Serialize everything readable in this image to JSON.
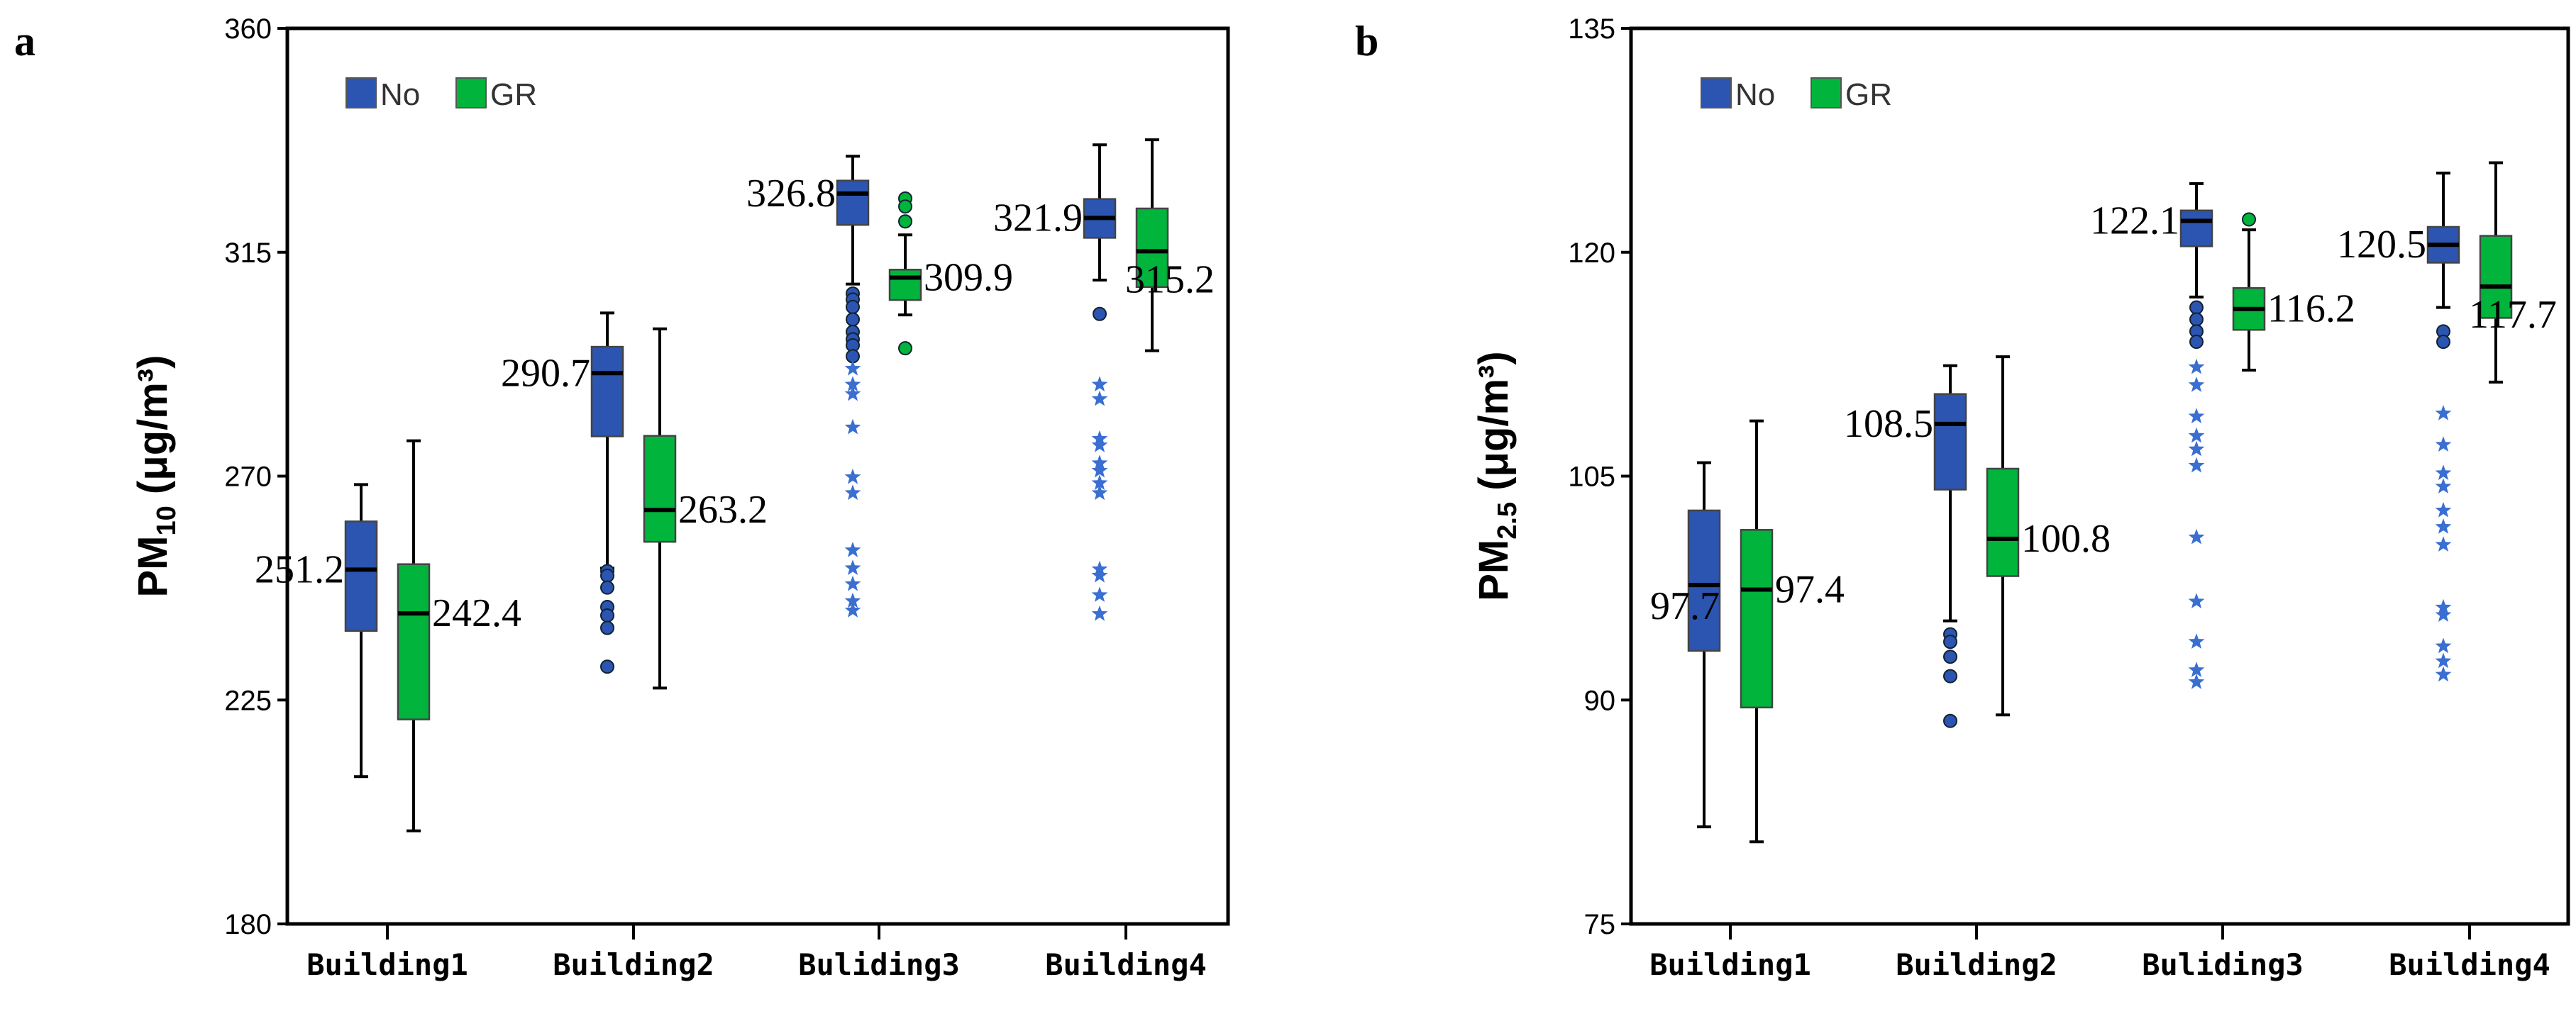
{
  "colors": {
    "No": "#2b55b0",
    "GR": "#00b43c",
    "star": "#3a6fd1"
  },
  "chart_data": [
    {
      "type": "box",
      "panel_label": "a",
      "ylabel_main": "PM",
      "ylabel_sub": "10",
      "ylabel_unit": " (μg/m³)",
      "ylim": [
        180,
        360
      ],
      "yticks": [
        180,
        225,
        270,
        315,
        360
      ],
      "categories": [
        "Building1",
        "Building2",
        "Buliding3",
        "Building4"
      ],
      "legend": {
        "position": "top-left",
        "entries": [
          "No",
          "GR"
        ]
      },
      "series": [
        {
          "name": "No",
          "boxes": [
            {
              "whisker_low": 209.6,
              "q1": 238.9,
              "median": 251.2,
              "q3": 260.9,
              "whisker_high": 268.3,
              "median_label": "251.2",
              "label_side": "left",
              "outliers": [],
              "extremes": []
            },
            {
              "whisker_low": 251.5,
              "q1": 278.0,
              "median": 290.7,
              "q3": 296.0,
              "whisker_high": 302.8,
              "median_label": "290.7",
              "label_side": "left",
              "outliers": [
                250.9,
                250.0,
                247.6,
                243.7,
                242.0,
                239.5,
                231.7
              ],
              "extremes": []
            },
            {
              "whisker_low": 308.6,
              "q1": 320.5,
              "median": 326.8,
              "q3": 329.4,
              "whisker_high": 334.3,
              "median_label": "326.8",
              "label_side": "left",
              "outliers": [
                306.7,
                305.5,
                304.0,
                301.5,
                299.0,
                297.5,
                296.3,
                294.1
              ],
              "extremes": [
                291.6,
                288.4,
                286.5,
                279.8,
                269.8,
                266.6,
                255.1,
                251.5,
                248.3,
                244.9,
                243.0
              ]
            },
            {
              "whisker_low": 309.4,
              "q1": 317.9,
              "median": 321.9,
              "q3": 325.7,
              "whisker_high": 336.6,
              "median_label": "321.9",
              "label_side": "left",
              "outliers": [
                302.6
              ],
              "extremes": [
                288.4,
                285.5,
                277.5,
                276.2,
                272.6,
                271.1,
                268.6,
                266.6,
                251.3,
                250.0,
                246.1,
                242.3
              ]
            }
          ]
        },
        {
          "name": "GR",
          "boxes": [
            {
              "whisker_low": 198.7,
              "q1": 221.1,
              "median": 242.4,
              "q3": 252.3,
              "whisker_high": 277.1,
              "median_label": "242.4",
              "label_side": "right",
              "outliers": [],
              "extremes": []
            },
            {
              "whisker_low": 227.4,
              "q1": 256.8,
              "median": 263.2,
              "q3": 278.1,
              "whisker_high": 299.6,
              "median_label": "263.2",
              "label_side": "right",
              "outliers": [],
              "extremes": []
            },
            {
              "whisker_low": 302.4,
              "q1": 305.4,
              "median": 309.9,
              "q3": 311.5,
              "whisker_high": 318.5,
              "median_label": "309.9",
              "label_side": "right",
              "outliers": [
                325.8,
                324.2,
                321.2,
                295.7
              ],
              "extremes": []
            },
            {
              "whisker_low": 295.2,
              "q1": 308.0,
              "median": 315.2,
              "q3": 323.8,
              "whisker_high": 337.6,
              "median_label": "315.2",
              "label_side": "overlap",
              "outliers": [],
              "extremes": []
            }
          ]
        }
      ]
    },
    {
      "type": "box",
      "panel_label": "b",
      "ylabel_main": "PM",
      "ylabel_sub": "2.5",
      "ylabel_unit": " (μg/m³)",
      "ylim": [
        75,
        135
      ],
      "yticks": [
        75,
        90,
        105,
        120,
        135
      ],
      "categories": [
        "Building1",
        "Building2",
        "Buliding3",
        "Building4"
      ],
      "legend": {
        "position": "top-left",
        "entries": [
          "No",
          "GR"
        ]
      },
      "series": [
        {
          "name": "No",
          "boxes": [
            {
              "whisker_low": 81.5,
              "q1": 93.3,
              "median": 97.7,
              "q3": 102.7,
              "whisker_high": 105.9,
              "median_label": "97.7",
              "label_side": "left-below",
              "outliers": [],
              "extremes": []
            },
            {
              "whisker_low": 95.3,
              "q1": 104.1,
              "median": 108.5,
              "q3": 110.5,
              "whisker_high": 112.4,
              "median_label": "108.5",
              "label_side": "left",
              "outliers": [
                94.4,
                93.9,
                92.9,
                91.6,
                88.6
              ],
              "extremes": []
            },
            {
              "whisker_low": 117.0,
              "q1": 120.4,
              "median": 122.1,
              "q3": 122.8,
              "whisker_high": 124.6,
              "median_label": "122.1",
              "label_side": "left",
              "outliers": [
                116.3,
                115.5,
                114.7,
                114.0
              ],
              "extremes": [
                112.3,
                111.1,
                109.0,
                107.7,
                106.8,
                105.7,
                100.9,
                96.6,
                93.9,
                92.0,
                91.2
              ]
            },
            {
              "whisker_low": 116.3,
              "q1": 119.3,
              "median": 120.5,
              "q3": 121.7,
              "whisker_high": 125.3,
              "median_label": "120.5",
              "label_side": "left",
              "outliers": [
                114.7,
                114.0
              ],
              "extremes": [
                109.2,
                107.1,
                105.2,
                104.3,
                102.7,
                101.6,
                100.4,
                96.2,
                95.7,
                93.6,
                92.6,
                91.7
              ]
            }
          ]
        },
        {
          "name": "GR",
          "boxes": [
            {
              "whisker_low": 80.5,
              "q1": 89.5,
              "median": 97.4,
              "q3": 101.4,
              "whisker_high": 108.7,
              "median_label": "97.4",
              "label_side": "right",
              "outliers": [],
              "extremes": []
            },
            {
              "whisker_low": 89.0,
              "q1": 98.3,
              "median": 100.8,
              "q3": 105.5,
              "whisker_high": 113.0,
              "median_label": "100.8",
              "label_side": "right",
              "outliers": [],
              "extremes": []
            },
            {
              "whisker_low": 112.1,
              "q1": 114.8,
              "median": 116.2,
              "q3": 117.6,
              "whisker_high": 121.5,
              "median_label": "116.2",
              "label_side": "right",
              "outliers": [
                122.2
              ],
              "extremes": []
            },
            {
              "whisker_low": 111.3,
              "q1": 115.6,
              "median": 117.7,
              "q3": 121.1,
              "whisker_high": 126.0,
              "median_label": "117.7",
              "label_side": "overlap",
              "outliers": [],
              "extremes": []
            }
          ]
        }
      ]
    }
  ]
}
